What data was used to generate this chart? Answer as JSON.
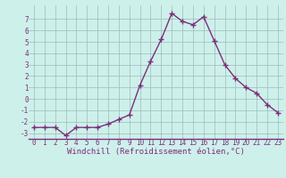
{
  "x": [
    0,
    1,
    2,
    3,
    4,
    5,
    6,
    7,
    8,
    9,
    10,
    11,
    12,
    13,
    14,
    15,
    16,
    17,
    18,
    19,
    20,
    21,
    22,
    23
  ],
  "y": [
    -2.5,
    -2.5,
    -2.5,
    -3.2,
    -2.5,
    -2.5,
    -2.5,
    -2.2,
    -1.8,
    -1.4,
    1.2,
    3.3,
    5.2,
    7.5,
    6.8,
    6.5,
    7.2,
    5.1,
    3.0,
    1.8,
    1.0,
    0.5,
    -0.5,
    -1.2
  ],
  "line_color": "#7b2f7b",
  "marker": "+",
  "marker_size": 4,
  "marker_linewidth": 1.0,
  "linewidth": 1.0,
  "bg_color": "#cef0ea",
  "grid_color": "#9bbcba",
  "xlabel": "Windchill (Refroidissement éolien,°C)",
  "xlim": [
    -0.5,
    23.5
  ],
  "ylim": [
    -3.5,
    8.2
  ],
  "yticks": [
    -3,
    -2,
    -1,
    0,
    1,
    2,
    3,
    4,
    5,
    6,
    7
  ],
  "xticks": [
    0,
    1,
    2,
    3,
    4,
    5,
    6,
    7,
    8,
    9,
    10,
    11,
    12,
    13,
    14,
    15,
    16,
    17,
    18,
    19,
    20,
    21,
    22,
    23
  ],
  "tick_fontsize": 5.5,
  "xlabel_fontsize": 6.5,
  "spine_color": "#7b2f7b"
}
